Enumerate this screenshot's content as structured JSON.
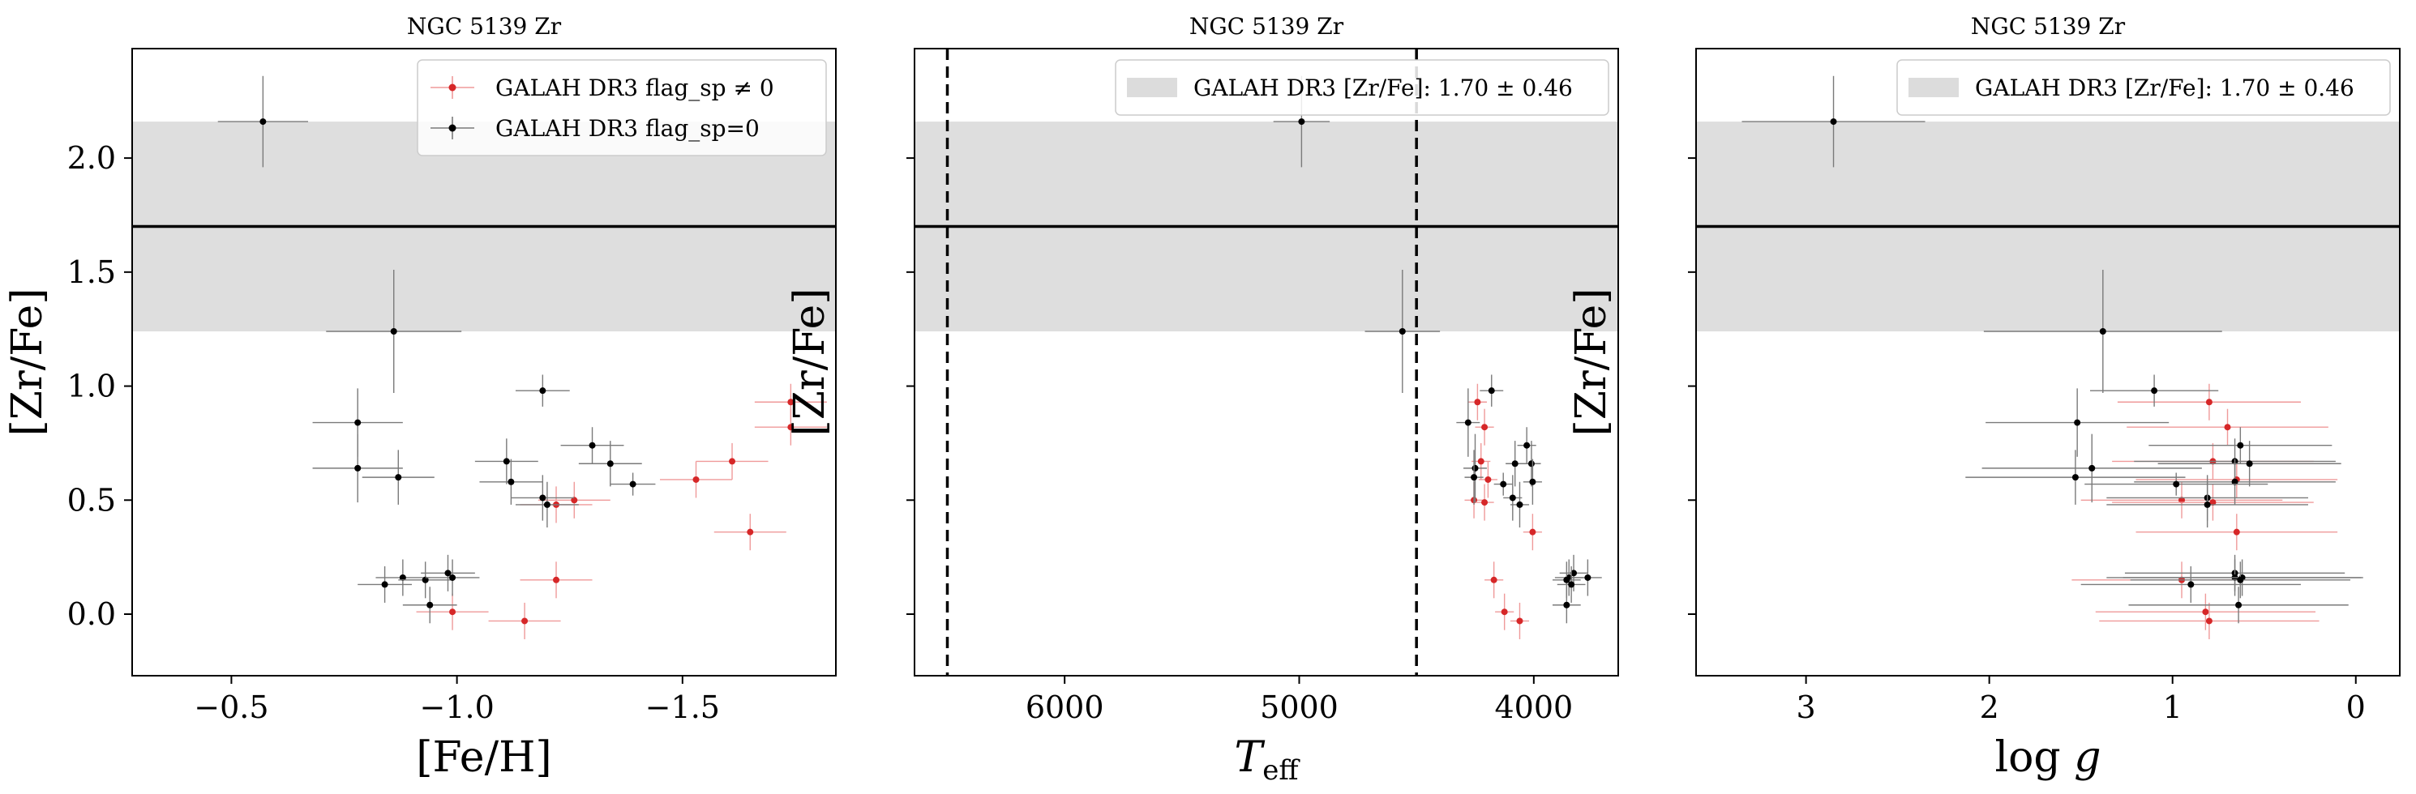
{
  "chart_data": [
    {
      "type": "scatter",
      "title": "NGC 5139 Zr",
      "xlabel": "[Fe/H]",
      "ylabel": "[Zr/Fe]",
      "xlim": [
        -0.28,
        -1.84
      ],
      "ylim": [
        -0.27,
        2.48
      ],
      "xticks": [
        -0.5,
        -1.0,
        -1.5
      ],
      "xtick_labels": [
        "−0.5",
        "−1.0",
        "−1.5"
      ],
      "yticks": [
        0.0,
        0.5,
        1.0,
        1.5,
        2.0
      ],
      "ytick_labels": [
        "0.0",
        "0.5",
        "1.0",
        "1.5",
        "2.0"
      ],
      "show_ytick_labels": true,
      "band": {
        "center": 1.7,
        "low": 1.24,
        "high": 2.16
      },
      "vlines": [],
      "legend": {
        "placement": "top-right",
        "entries": [
          {
            "label": "GALAH DR3 flag_sp ≠ 0",
            "color": "#d62728"
          },
          {
            "label": "GALAH DR3 flag_sp=0",
            "color": "#000000"
          }
        ]
      },
      "series": [
        {
          "name": "GALAH DR3 flag_sp ≠ 0",
          "color": "#d62728",
          "points": [
            {
              "x": -0.99,
              "y": 0.01,
              "xerr": 0.08,
              "yerr": 0.08
            },
            {
              "x": -1.15,
              "y": -0.03,
              "xerr": 0.08,
              "yerr": 0.08
            },
            {
              "x": -1.22,
              "y": 0.15,
              "xerr": 0.08,
              "yerr": 0.08
            },
            {
              "x": -1.22,
              "y": 0.48,
              "xerr": 0.08,
              "yerr": 0.08
            },
            {
              "x": -1.26,
              "y": 0.5,
              "xerr": 0.08,
              "yerr": 0.08
            },
            {
              "x": -1.53,
              "y": 0.59,
              "xerr": 0.08,
              "yerr": 0.08
            },
            {
              "x": -1.61,
              "y": 0.67,
              "xerr": 0.08,
              "yerr": 0.08
            },
            {
              "x": -1.65,
              "y": 0.36,
              "xerr": 0.08,
              "yerr": 0.08
            },
            {
              "x": -1.74,
              "y": 0.82,
              "xerr": 0.08,
              "yerr": 0.08
            },
            {
              "x": -1.74,
              "y": 0.93,
              "xerr": 0.08,
              "yerr": 0.08
            }
          ]
        },
        {
          "name": "GALAH DR3 flag_sp=0",
          "color": "#000000",
          "points": [
            {
              "x": -0.57,
              "y": 2.16,
              "xerr": 0.1,
              "yerr": 0.2
            },
            {
              "x": -0.86,
              "y": 1.24,
              "xerr": 0.15,
              "yerr": 0.27
            },
            {
              "x": -0.78,
              "y": 0.84,
              "xerr": 0.1,
              "yerr": 0.15
            },
            {
              "x": -0.78,
              "y": 0.64,
              "xerr": 0.1,
              "yerr": 0.15
            },
            {
              "x": -0.87,
              "y": 0.6,
              "xerr": 0.08,
              "yerr": 0.12
            },
            {
              "x": -1.19,
              "y": 0.98,
              "xerr": 0.06,
              "yerr": 0.07
            },
            {
              "x": -1.11,
              "y": 0.67,
              "xerr": 0.07,
              "yerr": 0.1
            },
            {
              "x": -1.12,
              "y": 0.58,
              "xerr": 0.07,
              "yerr": 0.1
            },
            {
              "x": -1.19,
              "y": 0.51,
              "xerr": 0.07,
              "yerr": 0.1
            },
            {
              "x": -1.2,
              "y": 0.48,
              "xerr": 0.07,
              "yerr": 0.1
            },
            {
              "x": -1.3,
              "y": 0.74,
              "xerr": 0.07,
              "yerr": 0.08
            },
            {
              "x": -1.34,
              "y": 0.66,
              "xerr": 0.07,
              "yerr": 0.1
            },
            {
              "x": -1.39,
              "y": 0.57,
              "xerr": 0.05,
              "yerr": 0.05
            },
            {
              "x": -0.84,
              "y": 0.13,
              "xerr": 0.06,
              "yerr": 0.08
            },
            {
              "x": -0.88,
              "y": 0.16,
              "xerr": 0.06,
              "yerr": 0.08
            },
            {
              "x": -0.93,
              "y": 0.15,
              "xerr": 0.06,
              "yerr": 0.08
            },
            {
              "x": -0.94,
              "y": 0.04,
              "xerr": 0.06,
              "yerr": 0.08
            },
            {
              "x": -0.98,
              "y": 0.18,
              "xerr": 0.06,
              "yerr": 0.08
            },
            {
              "x": -0.99,
              "y": 0.16,
              "xerr": 0.06,
              "yerr": 0.08
            }
          ]
        }
      ]
    },
    {
      "type": "scatter",
      "title": "NGC 5139 Zr",
      "xlabel": "T_eff",
      "ylabel": "[Zr/Fe]",
      "xlim": [
        6640,
        3640
      ],
      "ylim": [
        -0.27,
        2.48
      ],
      "xticks": [
        6000,
        5000,
        4000
      ],
      "xtick_labels": [
        "6000",
        "5000",
        "4000"
      ],
      "yticks": [
        0.0,
        0.5,
        1.0,
        1.5,
        2.0
      ],
      "ytick_labels": [],
      "show_ytick_labels": false,
      "band": {
        "center": 1.7,
        "low": 1.24,
        "high": 2.16
      },
      "vlines": [
        6500,
        4500
      ],
      "legend": {
        "placement": "top-right",
        "entries": [
          {
            "label": "GALAH DR3 [Zr/Fe]: 1.70 ± 0.46",
            "color": "#dcdcdc",
            "band": true
          }
        ]
      },
      "series": [
        {
          "name": "GALAH DR3 flag_sp ≠ 0",
          "color": "#d62728",
          "points": [
            {
              "x": 4240,
              "y": 0.93,
              "xerr": 40,
              "yerr": 0.08
            },
            {
              "x": 4210,
              "y": 0.82,
              "xerr": 40,
              "yerr": 0.08
            },
            {
              "x": 4225,
              "y": 0.67,
              "xerr": 40,
              "yerr": 0.08
            },
            {
              "x": 4195,
              "y": 0.59,
              "xerr": 40,
              "yerr": 0.08
            },
            {
              "x": 4255,
              "y": 0.5,
              "xerr": 40,
              "yerr": 0.08
            },
            {
              "x": 4210,
              "y": 0.49,
              "xerr": 40,
              "yerr": 0.08
            },
            {
              "x": 4005,
              "y": 0.36,
              "xerr": 40,
              "yerr": 0.08
            },
            {
              "x": 4170,
              "y": 0.15,
              "xerr": 40,
              "yerr": 0.08
            },
            {
              "x": 4125,
              "y": 0.01,
              "xerr": 40,
              "yerr": 0.08
            },
            {
              "x": 4060,
              "y": -0.03,
              "xerr": 40,
              "yerr": 0.08
            }
          ]
        },
        {
          "name": "GALAH DR3 flag_sp=0",
          "color": "#000000",
          "points": [
            {
              "x": 4990,
              "y": 2.16,
              "xerr": 120,
              "yerr": 0.2
            },
            {
              "x": 4560,
              "y": 1.24,
              "xerr": 160,
              "yerr": 0.27
            },
            {
              "x": 4180,
              "y": 0.98,
              "xerr": 50,
              "yerr": 0.07
            },
            {
              "x": 4280,
              "y": 0.84,
              "xerr": 50,
              "yerr": 0.15
            },
            {
              "x": 4030,
              "y": 0.74,
              "xerr": 40,
              "yerr": 0.08
            },
            {
              "x": 4080,
              "y": 0.66,
              "xerr": 40,
              "yerr": 0.1
            },
            {
              "x": 4010,
              "y": 0.66,
              "xerr": 40,
              "yerr": 0.1
            },
            {
              "x": 4250,
              "y": 0.64,
              "xerr": 50,
              "yerr": 0.15
            },
            {
              "x": 4255,
              "y": 0.6,
              "xerr": 40,
              "yerr": 0.12
            },
            {
              "x": 4005,
              "y": 0.58,
              "xerr": 40,
              "yerr": 0.1
            },
            {
              "x": 4130,
              "y": 0.57,
              "xerr": 40,
              "yerr": 0.05
            },
            {
              "x": 4090,
              "y": 0.51,
              "xerr": 40,
              "yerr": 0.1
            },
            {
              "x": 4060,
              "y": 0.48,
              "xerr": 40,
              "yerr": 0.1
            },
            {
              "x": 3850,
              "y": 0.16,
              "xerr": 60,
              "yerr": 0.08
            },
            {
              "x": 3770,
              "y": 0.16,
              "xerr": 60,
              "yerr": 0.08
            },
            {
              "x": 3830,
              "y": 0.18,
              "xerr": 60,
              "yerr": 0.08
            },
            {
              "x": 3860,
              "y": 0.15,
              "xerr": 60,
              "yerr": 0.08
            },
            {
              "x": 3840,
              "y": 0.13,
              "xerr": 60,
              "yerr": 0.08
            },
            {
              "x": 3860,
              "y": 0.04,
              "xerr": 60,
              "yerr": 0.08
            }
          ]
        }
      ]
    },
    {
      "type": "scatter",
      "title": "NGC 5139 Zr",
      "xlabel": "log g",
      "ylabel": "[Zr/Fe]",
      "xlim": [
        3.6,
        -0.24
      ],
      "ylim": [
        -0.27,
        2.48
      ],
      "xticks": [
        3,
        2,
        1,
        0
      ],
      "xtick_labels": [
        "3",
        "2",
        "1",
        "0"
      ],
      "yticks": [
        0.0,
        0.5,
        1.0,
        1.5,
        2.0
      ],
      "ytick_labels": [],
      "show_ytick_labels": false,
      "band": {
        "center": 1.7,
        "low": 1.24,
        "high": 2.16
      },
      "vlines": [],
      "legend": {
        "placement": "top-right",
        "entries": [
          {
            "label": "GALAH DR3 [Zr/Fe]: 1.70 ± 0.46",
            "color": "#dcdcdc",
            "band": true
          }
        ]
      },
      "series": [
        {
          "name": "GALAH DR3 flag_sp ≠ 0",
          "color": "#d62728",
          "points": [
            {
              "x": 0.8,
              "y": 0.93,
              "xerr": 0.5,
              "yerr": 0.08
            },
            {
              "x": 0.7,
              "y": 0.82,
              "xerr": 0.55,
              "yerr": 0.08
            },
            {
              "x": 0.78,
              "y": 0.67,
              "xerr": 0.55,
              "yerr": 0.08
            },
            {
              "x": 0.65,
              "y": 0.59,
              "xerr": 0.55,
              "yerr": 0.08
            },
            {
              "x": 0.95,
              "y": 0.5,
              "xerr": 0.55,
              "yerr": 0.08
            },
            {
              "x": 0.78,
              "y": 0.49,
              "xerr": 0.55,
              "yerr": 0.08
            },
            {
              "x": 0.65,
              "y": 0.36,
              "xerr": 0.55,
              "yerr": 0.08
            },
            {
              "x": 0.95,
              "y": 0.15,
              "xerr": 0.6,
              "yerr": 0.08
            },
            {
              "x": 0.82,
              "y": 0.01,
              "xerr": 0.6,
              "yerr": 0.08
            },
            {
              "x": 0.8,
              "y": -0.03,
              "xerr": 0.6,
              "yerr": 0.08
            }
          ]
        },
        {
          "name": "GALAH DR3 flag_sp=0",
          "color": "#000000",
          "points": [
            {
              "x": 2.85,
              "y": 2.16,
              "xerr": 0.5,
              "yerr": 0.2
            },
            {
              "x": 1.38,
              "y": 1.24,
              "xerr": 0.65,
              "yerr": 0.27
            },
            {
              "x": 1.1,
              "y": 0.98,
              "xerr": 0.35,
              "yerr": 0.07
            },
            {
              "x": 1.52,
              "y": 0.84,
              "xerr": 0.5,
              "yerr": 0.15
            },
            {
              "x": 0.63,
              "y": 0.74,
              "xerr": 0.5,
              "yerr": 0.08
            },
            {
              "x": 0.66,
              "y": 0.67,
              "xerr": 0.55,
              "yerr": 0.1
            },
            {
              "x": 0.58,
              "y": 0.66,
              "xerr": 0.5,
              "yerr": 0.1
            },
            {
              "x": 1.44,
              "y": 0.64,
              "xerr": 0.6,
              "yerr": 0.15
            },
            {
              "x": 1.53,
              "y": 0.6,
              "xerr": 0.6,
              "yerr": 0.12
            },
            {
              "x": 0.66,
              "y": 0.58,
              "xerr": 0.55,
              "yerr": 0.1
            },
            {
              "x": 0.98,
              "y": 0.57,
              "xerr": 0.5,
              "yerr": 0.05
            },
            {
              "x": 0.81,
              "y": 0.51,
              "xerr": 0.55,
              "yerr": 0.1
            },
            {
              "x": 0.81,
              "y": 0.48,
              "xerr": 0.55,
              "yerr": 0.1
            },
            {
              "x": 0.66,
              "y": 0.18,
              "xerr": 0.6,
              "yerr": 0.08
            },
            {
              "x": 0.66,
              "y": 0.16,
              "xerr": 0.7,
              "yerr": 0.08
            },
            {
              "x": 0.62,
              "y": 0.16,
              "xerr": 0.65,
              "yerr": 0.08
            },
            {
              "x": 0.63,
              "y": 0.15,
              "xerr": 0.6,
              "yerr": 0.08
            },
            {
              "x": 0.9,
              "y": 0.13,
              "xerr": 0.6,
              "yerr": 0.08
            },
            {
              "x": 0.64,
              "y": 0.04,
              "xerr": 0.6,
              "yerr": 0.08
            }
          ]
        }
      ]
    }
  ]
}
